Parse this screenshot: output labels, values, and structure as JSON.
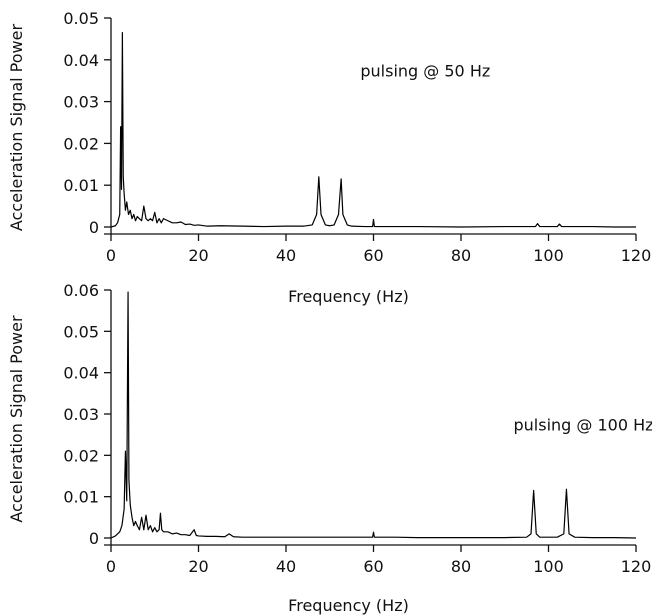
{
  "chart_data": [
    {
      "type": "line",
      "title": "",
      "xlabel": "Frequency (Hz)",
      "ylabel": "Acceleration Signal Power",
      "xlim": [
        0,
        120
      ],
      "ylim": [
        0,
        0.05
      ],
      "xticks": [
        0,
        20,
        40,
        60,
        80,
        100,
        120
      ],
      "xtick_labels": [
        "0",
        "20",
        "40",
        "60",
        "80",
        "100",
        "120"
      ],
      "yticks": [
        0,
        0.01,
        0.02,
        0.03,
        0.04,
        0.05
      ],
      "ytick_labels": [
        "0",
        "0.01",
        "0.02",
        "0.03",
        "0.04",
        "0.05"
      ],
      "grid": false,
      "annotation": {
        "text": "pulsing @ 50 Hz",
        "x": 57,
        "y": 0.036
      },
      "series": [
        {
          "x": [
            0,
            1,
            1.5,
            2,
            2.2,
            2.4,
            2.6,
            2.8,
            3,
            3.3,
            3.6,
            4,
            4.4,
            4.8,
            5.2,
            5.6,
            6,
            6.5,
            7,
            7.5,
            8,
            8.5,
            9,
            9.5,
            10,
            10.5,
            11,
            11.5,
            12,
            13,
            14,
            15,
            16,
            17,
            18,
            19,
            20,
            22,
            25,
            30,
            35,
            40,
            44,
            46,
            47,
            47.5,
            48,
            49,
            50,
            51,
            52,
            52.6,
            53,
            54,
            55,
            58,
            59.8,
            60,
            60.2,
            62,
            70,
            80,
            90,
            97,
            97.5,
            98,
            100,
            102,
            102.5,
            103,
            106,
            110,
            115,
            120
          ],
          "y": [
            0,
            0.0003,
            0.001,
            0.003,
            0.024,
            0.009,
            0.0465,
            0.012,
            0.008,
            0.004,
            0.006,
            0.003,
            0.004,
            0.002,
            0.003,
            0.0015,
            0.0025,
            0.002,
            0.0015,
            0.005,
            0.002,
            0.0015,
            0.002,
            0.0015,
            0.0035,
            0.001,
            0.002,
            0.001,
            0.002,
            0.0015,
            0.001,
            0.001,
            0.0012,
            0.0006,
            0.0007,
            0.0004,
            0.0005,
            0.0002,
            0.0003,
            0.0002,
            0.0001,
            0.0002,
            0.0002,
            0.0005,
            0.003,
            0.012,
            0.003,
            0.0005,
            0.0003,
            0.0005,
            0.003,
            0.0115,
            0.003,
            0.0005,
            0.0002,
            0.0001,
            0.0001,
            0.0018,
            0.0001,
            0.0001,
            0.0001,
            0,
            0.0001,
            0.0001,
            0.0008,
            0.0001,
            0.0001,
            0.0001,
            0.0007,
            0.0001,
            0.0001,
            0.0001,
            0,
            0
          ]
        }
      ]
    },
    {
      "type": "line",
      "title": "",
      "xlabel": "Frequency (Hz)",
      "ylabel": "Acceleration Signal Power",
      "xlim": [
        0,
        120
      ],
      "ylim": [
        0,
        0.06
      ],
      "xticks": [
        0,
        20,
        40,
        60,
        80,
        100,
        120
      ],
      "xtick_labels": [
        "0",
        "20",
        "40",
        "60",
        "80",
        "100",
        "120"
      ],
      "yticks": [
        0,
        0.01,
        0.02,
        0.03,
        0.04,
        0.05,
        0.06
      ],
      "ytick_labels": [
        "0",
        "0.01",
        "0.02",
        "0.03",
        "0.04",
        "0.05",
        "0.06"
      ],
      "grid": false,
      "annotation": {
        "text": "pulsing @ 100 Hz",
        "x": 92,
        "y": 0.026
      },
      "series": [
        {
          "x": [
            0,
            1,
            2,
            2.5,
            3,
            3.3,
            3.6,
            3.9,
            4.1,
            4.4,
            4.8,
            5.2,
            5.6,
            6,
            6.5,
            7,
            7.5,
            8,
            8.5,
            9,
            9.5,
            10,
            10.5,
            11,
            11.3,
            11.6,
            12,
            13,
            14,
            15,
            16,
            17,
            18,
            19,
            19.5,
            20,
            22,
            24,
            26,
            27,
            28,
            30,
            35,
            40,
            45,
            50,
            55,
            59.8,
            60,
            60.2,
            65,
            70,
            80,
            90,
            95,
            96,
            96.6,
            97.2,
            98,
            100,
            102,
            103.5,
            104.1,
            104.7,
            106,
            110,
            115,
            120
          ],
          "y": [
            0,
            0.0005,
            0.0015,
            0.003,
            0.007,
            0.021,
            0.009,
            0.0595,
            0.014,
            0.008,
            0.005,
            0.003,
            0.004,
            0.003,
            0.002,
            0.005,
            0.002,
            0.0055,
            0.002,
            0.003,
            0.0015,
            0.0025,
            0.0015,
            0.002,
            0.006,
            0.002,
            0.0015,
            0.0015,
            0.001,
            0.0012,
            0.0008,
            0.0008,
            0.0006,
            0.002,
            0.0006,
            0.0005,
            0.0004,
            0.0004,
            0.0003,
            0.001,
            0.0003,
            0.0002,
            0.0002,
            0.0002,
            0.0002,
            0.0002,
            0.0002,
            0.0002,
            0.0014,
            0.0002,
            0.0002,
            0.0001,
            0.0001,
            0.0001,
            0.0002,
            0.001,
            0.0115,
            0.001,
            0.0002,
            0.0002,
            0.0002,
            0.001,
            0.0118,
            0.001,
            0.0002,
            0.0001,
            0.0001,
            0
          ]
        }
      ]
    }
  ]
}
